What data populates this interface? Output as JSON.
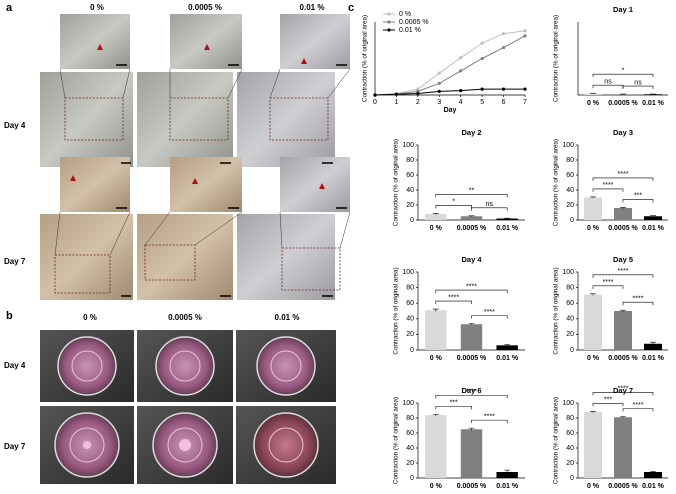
{
  "panel_a": {
    "label": "a",
    "columns": [
      "0 %",
      "0.0005 %",
      "0.01 %"
    ],
    "rows": [
      "Day 4",
      "Day 7"
    ]
  },
  "panel_b": {
    "label": "b",
    "columns": [
      "0 %",
      "0.0005 %",
      "0.01 %"
    ],
    "rows": [
      "Day 4",
      "Day 7"
    ]
  },
  "panel_c": {
    "label": "c"
  },
  "chart_data": [
    {
      "type": "line",
      "xlabel": "Day",
      "ylabel": "Contraction (% of original area)",
      "x": [
        0,
        1,
        2,
        3,
        4,
        5,
        6,
        7
      ],
      "xlim": [
        0,
        7
      ],
      "xticks": [
        0,
        1,
        2,
        3,
        4,
        5,
        6,
        7
      ],
      "ylim": [
        0,
        100
      ],
      "series": [
        {
          "name": "0 %",
          "color": "#bfbfbf",
          "values": [
            0,
            2,
            8,
            30,
            51,
            71,
            84,
            88
          ]
        },
        {
          "name": "0.0005 %",
          "color": "#808080",
          "values": [
            0,
            1,
            5,
            16,
            33,
            50,
            65,
            81
          ]
        },
        {
          "name": "0.01 %",
          "color": "#000000",
          "values": [
            0,
            1,
            2,
            5,
            6,
            8,
            8,
            8
          ]
        }
      ]
    },
    {
      "type": "bar",
      "title": "Day 1",
      "ylabel": "Contraction (% of original area)",
      "categories": [
        "0 %",
        "0.0005 %",
        "0.01 %"
      ],
      "values": [
        2,
        1,
        1
      ],
      "errors": [
        0.5,
        0.3,
        0.3
      ],
      "colors": [
        "#d9d9d9",
        "#808080",
        "#000000"
      ],
      "ylim": [
        0,
        100
      ],
      "significance": {
        "top": "*",
        "left": "ns",
        "right": "ns"
      }
    },
    {
      "type": "bar",
      "title": "Day 2",
      "ylabel": "Contraction (% of original area)",
      "categories": [
        "0 %",
        "0.0005 %",
        "0.01 %"
      ],
      "values": [
        8,
        5,
        2
      ],
      "errors": [
        0.8,
        0.6,
        0.5
      ],
      "colors": [
        "#d9d9d9",
        "#808080",
        "#000000"
      ],
      "ylim": [
        0,
        100
      ],
      "yticks": [
        0,
        20,
        40,
        60,
        80,
        100
      ],
      "significance": {
        "top": "**",
        "left": "*",
        "right": "ns"
      }
    },
    {
      "type": "bar",
      "title": "Day 3",
      "ylabel": "Contraction (% of original area)",
      "categories": [
        "0 %",
        "0.0005 %",
        "0.01 %"
      ],
      "values": [
        30,
        16,
        5
      ],
      "errors": [
        0.8,
        0.8,
        0.8
      ],
      "colors": [
        "#d9d9d9",
        "#808080",
        "#000000"
      ],
      "ylim": [
        0,
        100
      ],
      "yticks": [
        0,
        20,
        40,
        60,
        80,
        100
      ],
      "significance": {
        "top": "****",
        "left": "****",
        "right": "***"
      }
    },
    {
      "type": "bar",
      "title": "Day 4",
      "ylabel": "Contraction (% of original area)",
      "categories": [
        "0 %",
        "0.0005 %",
        "0.01 %"
      ],
      "values": [
        51,
        33,
        6
      ],
      "errors": [
        1.5,
        0.8,
        1.2
      ],
      "colors": [
        "#d9d9d9",
        "#808080",
        "#000000"
      ],
      "ylim": [
        0,
        100
      ],
      "yticks": [
        0,
        20,
        40,
        60,
        80,
        100
      ],
      "significance": {
        "top": "****",
        "left": "****",
        "right": "****"
      }
    },
    {
      "type": "bar",
      "title": "Day 5",
      "ylabel": "Contraction (% of original area)",
      "categories": [
        "0 %",
        "0.0005 %",
        "0.01 %"
      ],
      "values": [
        71,
        50,
        8
      ],
      "errors": [
        1,
        1,
        2
      ],
      "colors": [
        "#d9d9d9",
        "#808080",
        "#000000"
      ],
      "ylim": [
        0,
        100
      ],
      "yticks": [
        0,
        20,
        40,
        60,
        80,
        100
      ],
      "significance": {
        "top": "****",
        "left": "****",
        "right": "****"
      }
    },
    {
      "type": "bar",
      "title": "Day 6",
      "ylabel": "Contraction (% of original area)",
      "categories": [
        "0 %",
        "0.0005 %",
        "0.01 %"
      ],
      "values": [
        84,
        65,
        8
      ],
      "errors": [
        1,
        1.5,
        2.5
      ],
      "colors": [
        "#d9d9d9",
        "#808080",
        "#000000"
      ],
      "ylim": [
        0,
        100
      ],
      "yticks": [
        0,
        20,
        40,
        60,
        80,
        100
      ],
      "significance": {
        "top": "****",
        "left": "***",
        "right": "****"
      }
    },
    {
      "type": "bar",
      "title": "Day 7",
      "ylabel": "Contraction (% of original area)",
      "categories": [
        "0 %",
        "0.0005 %",
        "0.01 %"
      ],
      "values": [
        88,
        81,
        8
      ],
      "errors": [
        0.8,
        1,
        1
      ],
      "colors": [
        "#d9d9d9",
        "#808080",
        "#000000"
      ],
      "ylim": [
        0,
        100
      ],
      "yticks": [
        0,
        20,
        40,
        60,
        80,
        100
      ],
      "significance": {
        "top": "****",
        "left": "***",
        "right": "****"
      }
    }
  ]
}
